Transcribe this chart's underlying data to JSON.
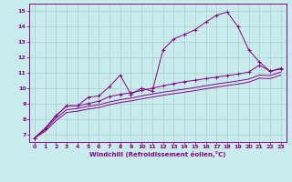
{
  "xlabel": "Windchill (Refroidissement éolien,°C)",
  "bg_color": "#c8ecec",
  "line_color": "#880088",
  "grid_color": "#aacccc",
  "x_ticks": [
    0,
    1,
    2,
    3,
    4,
    5,
    6,
    7,
    8,
    9,
    10,
    11,
    12,
    13,
    14,
    15,
    16,
    17,
    18,
    19,
    20,
    21,
    22,
    23
  ],
  "y_ticks": [
    7,
    8,
    9,
    10,
    11,
    12,
    13,
    14,
    15
  ],
  "xlim": [
    -0.5,
    23.5
  ],
  "ylim": [
    6.5,
    15.5
  ],
  "s1_x": [
    0,
    1,
    2,
    3,
    4,
    5,
    6,
    7,
    8,
    9,
    10,
    11,
    12,
    13,
    14,
    15,
    16,
    17,
    18,
    19,
    20,
    21,
    22,
    23
  ],
  "s1_y": [
    6.75,
    7.4,
    8.2,
    8.85,
    8.85,
    9.4,
    9.5,
    10.1,
    10.85,
    9.6,
    10.0,
    9.8,
    12.5,
    13.2,
    13.5,
    13.8,
    14.3,
    14.75,
    14.95,
    14.0,
    12.5,
    11.7,
    11.1,
    11.25
  ],
  "s2_x": [
    0,
    1,
    2,
    3,
    4,
    5,
    6,
    7,
    8,
    9,
    10,
    11,
    12,
    13,
    14,
    15,
    16,
    17,
    18,
    19,
    20,
    21,
    22,
    23
  ],
  "s2_y": [
    6.75,
    7.4,
    8.2,
    8.85,
    8.85,
    9.0,
    9.15,
    9.45,
    9.6,
    9.7,
    9.85,
    10.0,
    10.15,
    10.3,
    10.42,
    10.52,
    10.62,
    10.72,
    10.82,
    10.92,
    11.05,
    11.5,
    11.1,
    11.3
  ],
  "s3_x": [
    0,
    1,
    2,
    3,
    4,
    5,
    6,
    7,
    8,
    9,
    10,
    11,
    12,
    13,
    14,
    15,
    16,
    17,
    18,
    19,
    20,
    21,
    22,
    23
  ],
  "s3_y": [
    6.75,
    7.3,
    8.05,
    8.6,
    8.68,
    8.82,
    8.92,
    9.1,
    9.25,
    9.35,
    9.5,
    9.62,
    9.74,
    9.84,
    9.94,
    10.04,
    10.16,
    10.27,
    10.37,
    10.47,
    10.59,
    10.85,
    10.82,
    11.05
  ],
  "s4_x": [
    0,
    1,
    2,
    3,
    4,
    5,
    6,
    7,
    8,
    9,
    10,
    11,
    12,
    13,
    14,
    15,
    16,
    17,
    18,
    19,
    20,
    21,
    22,
    23
  ],
  "s4_y": [
    6.75,
    7.2,
    7.88,
    8.42,
    8.5,
    8.64,
    8.74,
    8.92,
    9.07,
    9.17,
    9.3,
    9.42,
    9.54,
    9.64,
    9.74,
    9.84,
    9.96,
    10.07,
    10.17,
    10.27,
    10.39,
    10.65,
    10.62,
    10.85
  ]
}
